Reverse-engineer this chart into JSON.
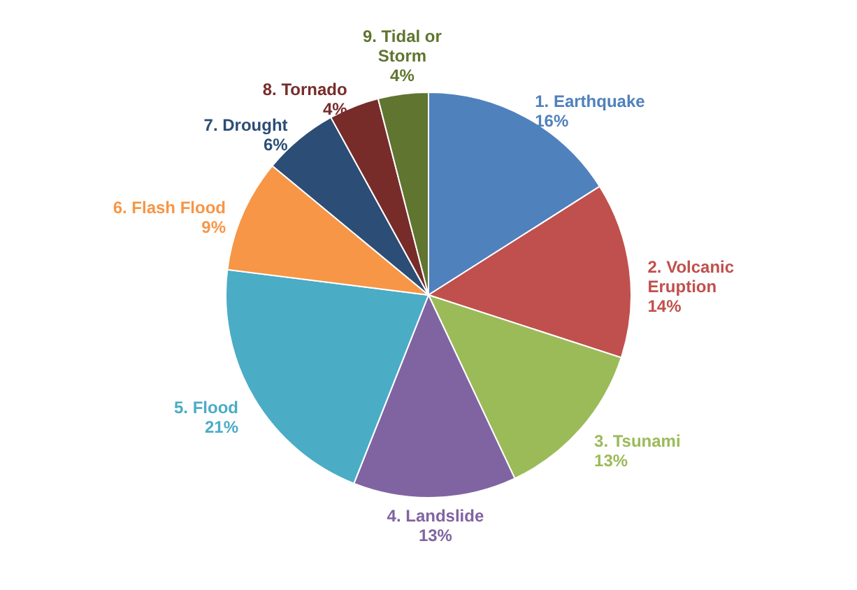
{
  "chart_data": {
    "type": "pie",
    "categories": [
      "1. Earthquake",
      "2. Volcanic Eruption",
      "3. Tsunami",
      "4. Landslide",
      "5. Flood",
      "6. Flash Flood",
      "7. Drought",
      "8. Tornado",
      "9. Tidal or Storm"
    ],
    "values": [
      16,
      14,
      13,
      13,
      21,
      9,
      6,
      4,
      4
    ],
    "value_labels": [
      "16%",
      "14%",
      "13%",
      "13%",
      "21%",
      "9%",
      "6%",
      "4%",
      "4%"
    ],
    "colors": [
      "#4f81bd",
      "#c0504d",
      "#9bbb59",
      "#8064a2",
      "#4bacc6",
      "#f79646",
      "#2c4d75",
      "#772c2a",
      "#5f7530"
    ]
  }
}
